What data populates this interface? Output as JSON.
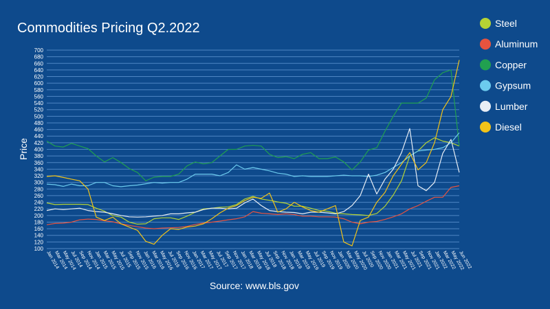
{
  "chart_data": {
    "type": "line",
    "title": "Commodities Pricing Q2.2022",
    "ylabel": "Price",
    "xlabel": "",
    "source": "Source: www.bls.gov",
    "ylim": [
      100,
      700
    ],
    "yticks": [
      100,
      120,
      140,
      160,
      180,
      200,
      220,
      240,
      260,
      280,
      300,
      320,
      340,
      360,
      380,
      400,
      420,
      440,
      460,
      480,
      500,
      520,
      540,
      560,
      580,
      600,
      620,
      640,
      660,
      680,
      700
    ],
    "grid": true,
    "legend_position": "right",
    "x": [
      "Jan 2014",
      "Mar 2014",
      "May 2014",
      "Jul 2014",
      "Sep 2014",
      "Nov 2014",
      "Jan 2015",
      "Mar 2015",
      "May 2015",
      "Jul 2015",
      "Sep 2015",
      "Nov 2015",
      "Jan 2016",
      "Mar 2016",
      "May 2016",
      "Jul 2016",
      "Sep 2016",
      "Nov 2016",
      "Jan 2017",
      "Mar 2017",
      "May 2017",
      "Jul 2017",
      "Sep 2017",
      "Nov 2017",
      "Jan 2018",
      "Mar 2018",
      "May 2018",
      "Jul 2018",
      "Sep 2018",
      "Nov 2018",
      "Jan 2019",
      "Mar 2019",
      "May 2019",
      "Jul 2019",
      "Sep 2019",
      "Nov 2019",
      "Jan 2020",
      "Mar 2020",
      "May 2020",
      "Jul 2020",
      "Sep 2020",
      "Nov 2020",
      "Jan 2021",
      "Mar 2021",
      "May 2021",
      "Jul 2021",
      "Sep 2021",
      "Nov 2021",
      "Jan 2022",
      "Mar 2022",
      "May 2022"
    ],
    "xtick_labels": [
      "Jan 2014",
      "Mar 2014",
      "May 2014",
      "Jul 2014",
      "Sep 2014",
      "Nov 2014",
      "Jan 2015",
      "Mar 2015",
      "May 2015",
      "Jul 2015",
      "Sep 2015",
      "Nov 2015",
      "Jan 2016",
      "Mar 2016",
      "May 2016",
      "Jul 2016",
      "Sep 2016",
      "Nov 2016",
      "Jan 2017",
      "Mar 2017",
      "May 2017",
      "Jul 2017",
      "Sep 2017",
      "Nov 2017",
      "Jan 2018",
      "Mar 2018",
      "May 2018",
      "Jul 2018",
      "Sep 2018",
      "Nov 2018",
      "Jan 2019",
      "Mar 2019",
      "May 2019",
      "Jul 2019",
      "Sep 2019",
      "Nov 2019",
      "Jan 2020",
      "Mar 2020",
      "May 2020",
      "Jul 2020",
      "Sep 2020",
      "Nov 2020",
      "Jan 2021",
      "Mar 2021",
      "May 2021",
      "Jul 2021",
      "Sep 2021",
      "Nov 2021",
      "Jan 2022",
      "Mar 2022",
      "May 2022",
      "Jun 2022"
    ],
    "series": [
      {
        "name": "Steel",
        "color": "#b5d334",
        "values": [
          238,
          233,
          234,
          234,
          234,
          233,
          222,
          213,
          200,
          195,
          180,
          174,
          175,
          190,
          193,
          193,
          188,
          198,
          210,
          220,
          222,
          225,
          226,
          233,
          250,
          258,
          250,
          246,
          241,
          237,
          228,
          228,
          222,
          215,
          213,
          207,
          205,
          203,
          202,
          200,
          206,
          228,
          262,
          305,
          380,
          395,
          420,
          435,
          425,
          420,
          410
        ]
      },
      {
        "name": "Aluminum",
        "color": "#e8533f",
        "values": [
          172,
          176,
          177,
          180,
          187,
          189,
          188,
          184,
          181,
          175,
          170,
          166,
          162,
          160,
          162,
          163,
          164,
          167,
          173,
          177,
          180,
          183,
          187,
          190,
          196,
          212,
          207,
          205,
          203,
          205,
          203,
          198,
          198,
          196,
          196,
          195,
          190,
          180,
          175,
          180,
          182,
          188,
          196,
          205,
          220,
          230,
          243,
          255,
          255,
          285,
          290
        ]
      },
      {
        "name": "Copper",
        "color": "#21a050",
        "values": [
          425,
          410,
          407,
          418,
          410,
          402,
          380,
          362,
          375,
          360,
          342,
          330,
          305,
          316,
          318,
          318,
          325,
          350,
          362,
          356,
          360,
          380,
          400,
          400,
          410,
          412,
          410,
          385,
          375,
          378,
          372,
          385,
          390,
          372,
          372,
          377,
          362,
          338,
          362,
          398,
          405,
          455,
          500,
          540,
          540,
          540,
          555,
          610,
          632,
          640,
          410
        ]
      },
      {
        "name": "Gypsum",
        "color": "#6ccbee",
        "values": [
          295,
          293,
          288,
          295,
          290,
          290,
          300,
          300,
          290,
          287,
          290,
          292,
          296,
          300,
          298,
          300,
          300,
          310,
          325,
          325,
          325,
          320,
          330,
          353,
          340,
          345,
          340,
          335,
          328,
          325,
          318,
          320,
          318,
          318,
          318,
          320,
          322,
          320,
          320,
          318,
          322,
          330,
          345,
          360,
          380,
          395,
          398,
          400,
          405,
          420,
          450
        ]
      },
      {
        "name": "Lumber",
        "color": "#e8eef5",
        "values": [
          215,
          220,
          218,
          220,
          222,
          215,
          212,
          210,
          205,
          200,
          196,
          195,
          196,
          198,
          200,
          205,
          205,
          208,
          210,
          218,
          222,
          222,
          220,
          222,
          238,
          250,
          230,
          215,
          212,
          210,
          209,
          205,
          210,
          210,
          208,
          205,
          212,
          230,
          260,
          325,
          265,
          310,
          340,
          390,
          463,
          290,
          275,
          300,
          388,
          430,
          330
        ]
      },
      {
        "name": "Diesel",
        "color": "#f2c318",
        "values": [
          318,
          320,
          315,
          310,
          305,
          280,
          195,
          185,
          195,
          175,
          165,
          155,
          122,
          113,
          140,
          160,
          158,
          165,
          168,
          175,
          190,
          208,
          222,
          230,
          245,
          255,
          252,
          268,
          210,
          220,
          240,
          226,
          215,
          210,
          220,
          230,
          120,
          108,
          185,
          195,
          240,
          270,
          320,
          355,
          390,
          338,
          360,
          420,
          520,
          560,
          670
        ]
      }
    ]
  }
}
